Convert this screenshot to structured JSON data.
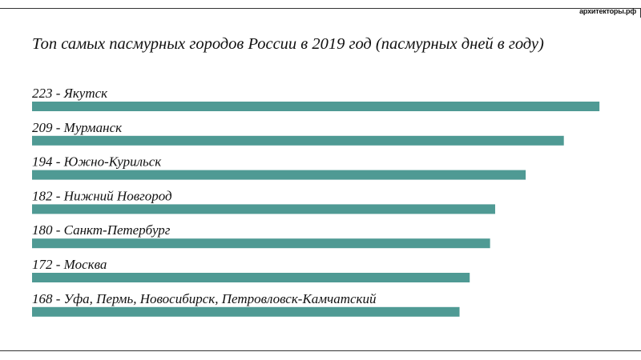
{
  "brand": "архитекторы.рф",
  "chart_data": {
    "type": "bar",
    "orientation": "horizontal",
    "title": "Топ самых пасмурных городов России в 2019 год (пасмурных дней в году)",
    "labels": [
      "223 - Якутск",
      "209 - Мурманск",
      "194 - Южно-Курильск",
      "182 - Нижний Новгород",
      "180 - Санкт-Петербург",
      "172 - Москва",
      "168 - Уфа, Пермь, Новосибирск, Петровловск-Камчатский"
    ],
    "categories": [
      "Якутск",
      "Мурманск",
      "Южно-Курильск",
      "Нижний Новгород",
      "Санкт-Петербург",
      "Москва",
      "Уфа, Пермь, Новосибирск, Петровловск-Камчатский"
    ],
    "values": [
      223,
      209,
      194,
      182,
      180,
      172,
      168
    ],
    "bar_color": "#4f9a94",
    "grid": false,
    "legend": "none"
  }
}
